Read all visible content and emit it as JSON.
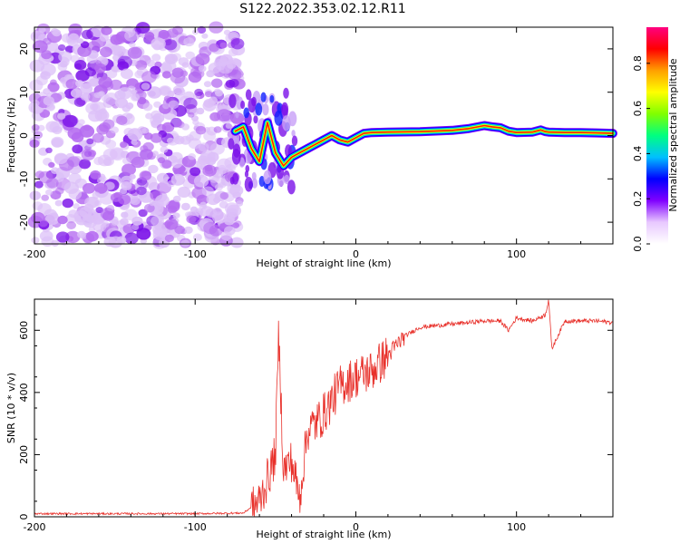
{
  "title": "S122.2022.353.02.12.R11",
  "chart_data": [
    {
      "type": "heatmap",
      "name": "spectrogram",
      "xlabel": "Height of straight line (km)",
      "ylabel": "Frequency (Hz)",
      "xlim": [
        -200,
        160
      ],
      "ylim": [
        -25,
        25
      ],
      "xticks": [
        -200,
        -100,
        0,
        100
      ],
      "yticks": [
        -20,
        -10,
        0,
        10,
        20
      ],
      "signal_track": {
        "x": [
          -75,
          -70,
          -65,
          -60,
          -55,
          -50,
          -45,
          -40,
          -35,
          -30,
          -25,
          -20,
          -15,
          -10,
          -5,
          0,
          5,
          10,
          20,
          40,
          60,
          70,
          80,
          85,
          90,
          95,
          100,
          110,
          115,
          118,
          120,
          130,
          140,
          150,
          160
        ],
        "y": [
          1,
          2,
          -3,
          -6,
          3,
          -4,
          -7,
          -5,
          -4,
          -3,
          -2,
          -1,
          0,
          -1,
          -1.5,
          -0.5,
          0.5,
          0.7,
          0.8,
          0.9,
          1.2,
          1.6,
          2.3,
          2.0,
          1.8,
          1.0,
          0.7,
          0.8,
          1.3,
          0.9,
          0.8,
          0.7,
          0.7,
          0.6,
          0.5
        ]
      },
      "colorbar": {
        "label": "Normalized spectral amplitude",
        "ticks": [
          0.0,
          0.2,
          0.4,
          0.6,
          0.8
        ],
        "colors": [
          "#ffffff",
          "#e8c8ff",
          "#8000ff",
          "#0000ff",
          "#00c0ff",
          "#00ff80",
          "#80ff00",
          "#ffff00",
          "#ffa000",
          "#ff0000",
          "#ff0080"
        ]
      }
    },
    {
      "type": "line",
      "name": "snr",
      "xlabel": "Height of straight line (km)",
      "ylabel": "SNR (10 * v/v)",
      "xlim": [
        -200,
        160
      ],
      "ylim": [
        0,
        700
      ],
      "xticks": [
        -200,
        -100,
        0,
        100
      ],
      "yticks": [
        0,
        200,
        400,
        600
      ],
      "color": "#e8302a",
      "series": [
        {
          "name": "SNR",
          "x": [
            -200,
            -150,
            -100,
            -70,
            -60,
            -55,
            -50,
            -48,
            -45,
            -40,
            -35,
            -30,
            -25,
            -20,
            -10,
            0,
            10,
            20,
            30,
            40,
            60,
            80,
            90,
            95,
            100,
            110,
            118,
            120,
            122,
            130,
            150,
            160
          ],
          "y": [
            10,
            10,
            10,
            12,
            50,
            120,
            200,
            590,
            150,
            180,
            60,
            280,
            300,
            330,
            420,
            450,
            470,
            520,
            580,
            610,
            620,
            630,
            630,
            600,
            640,
            630,
            650,
            700,
            540,
            630,
            630,
            625
          ]
        }
      ]
    }
  ]
}
